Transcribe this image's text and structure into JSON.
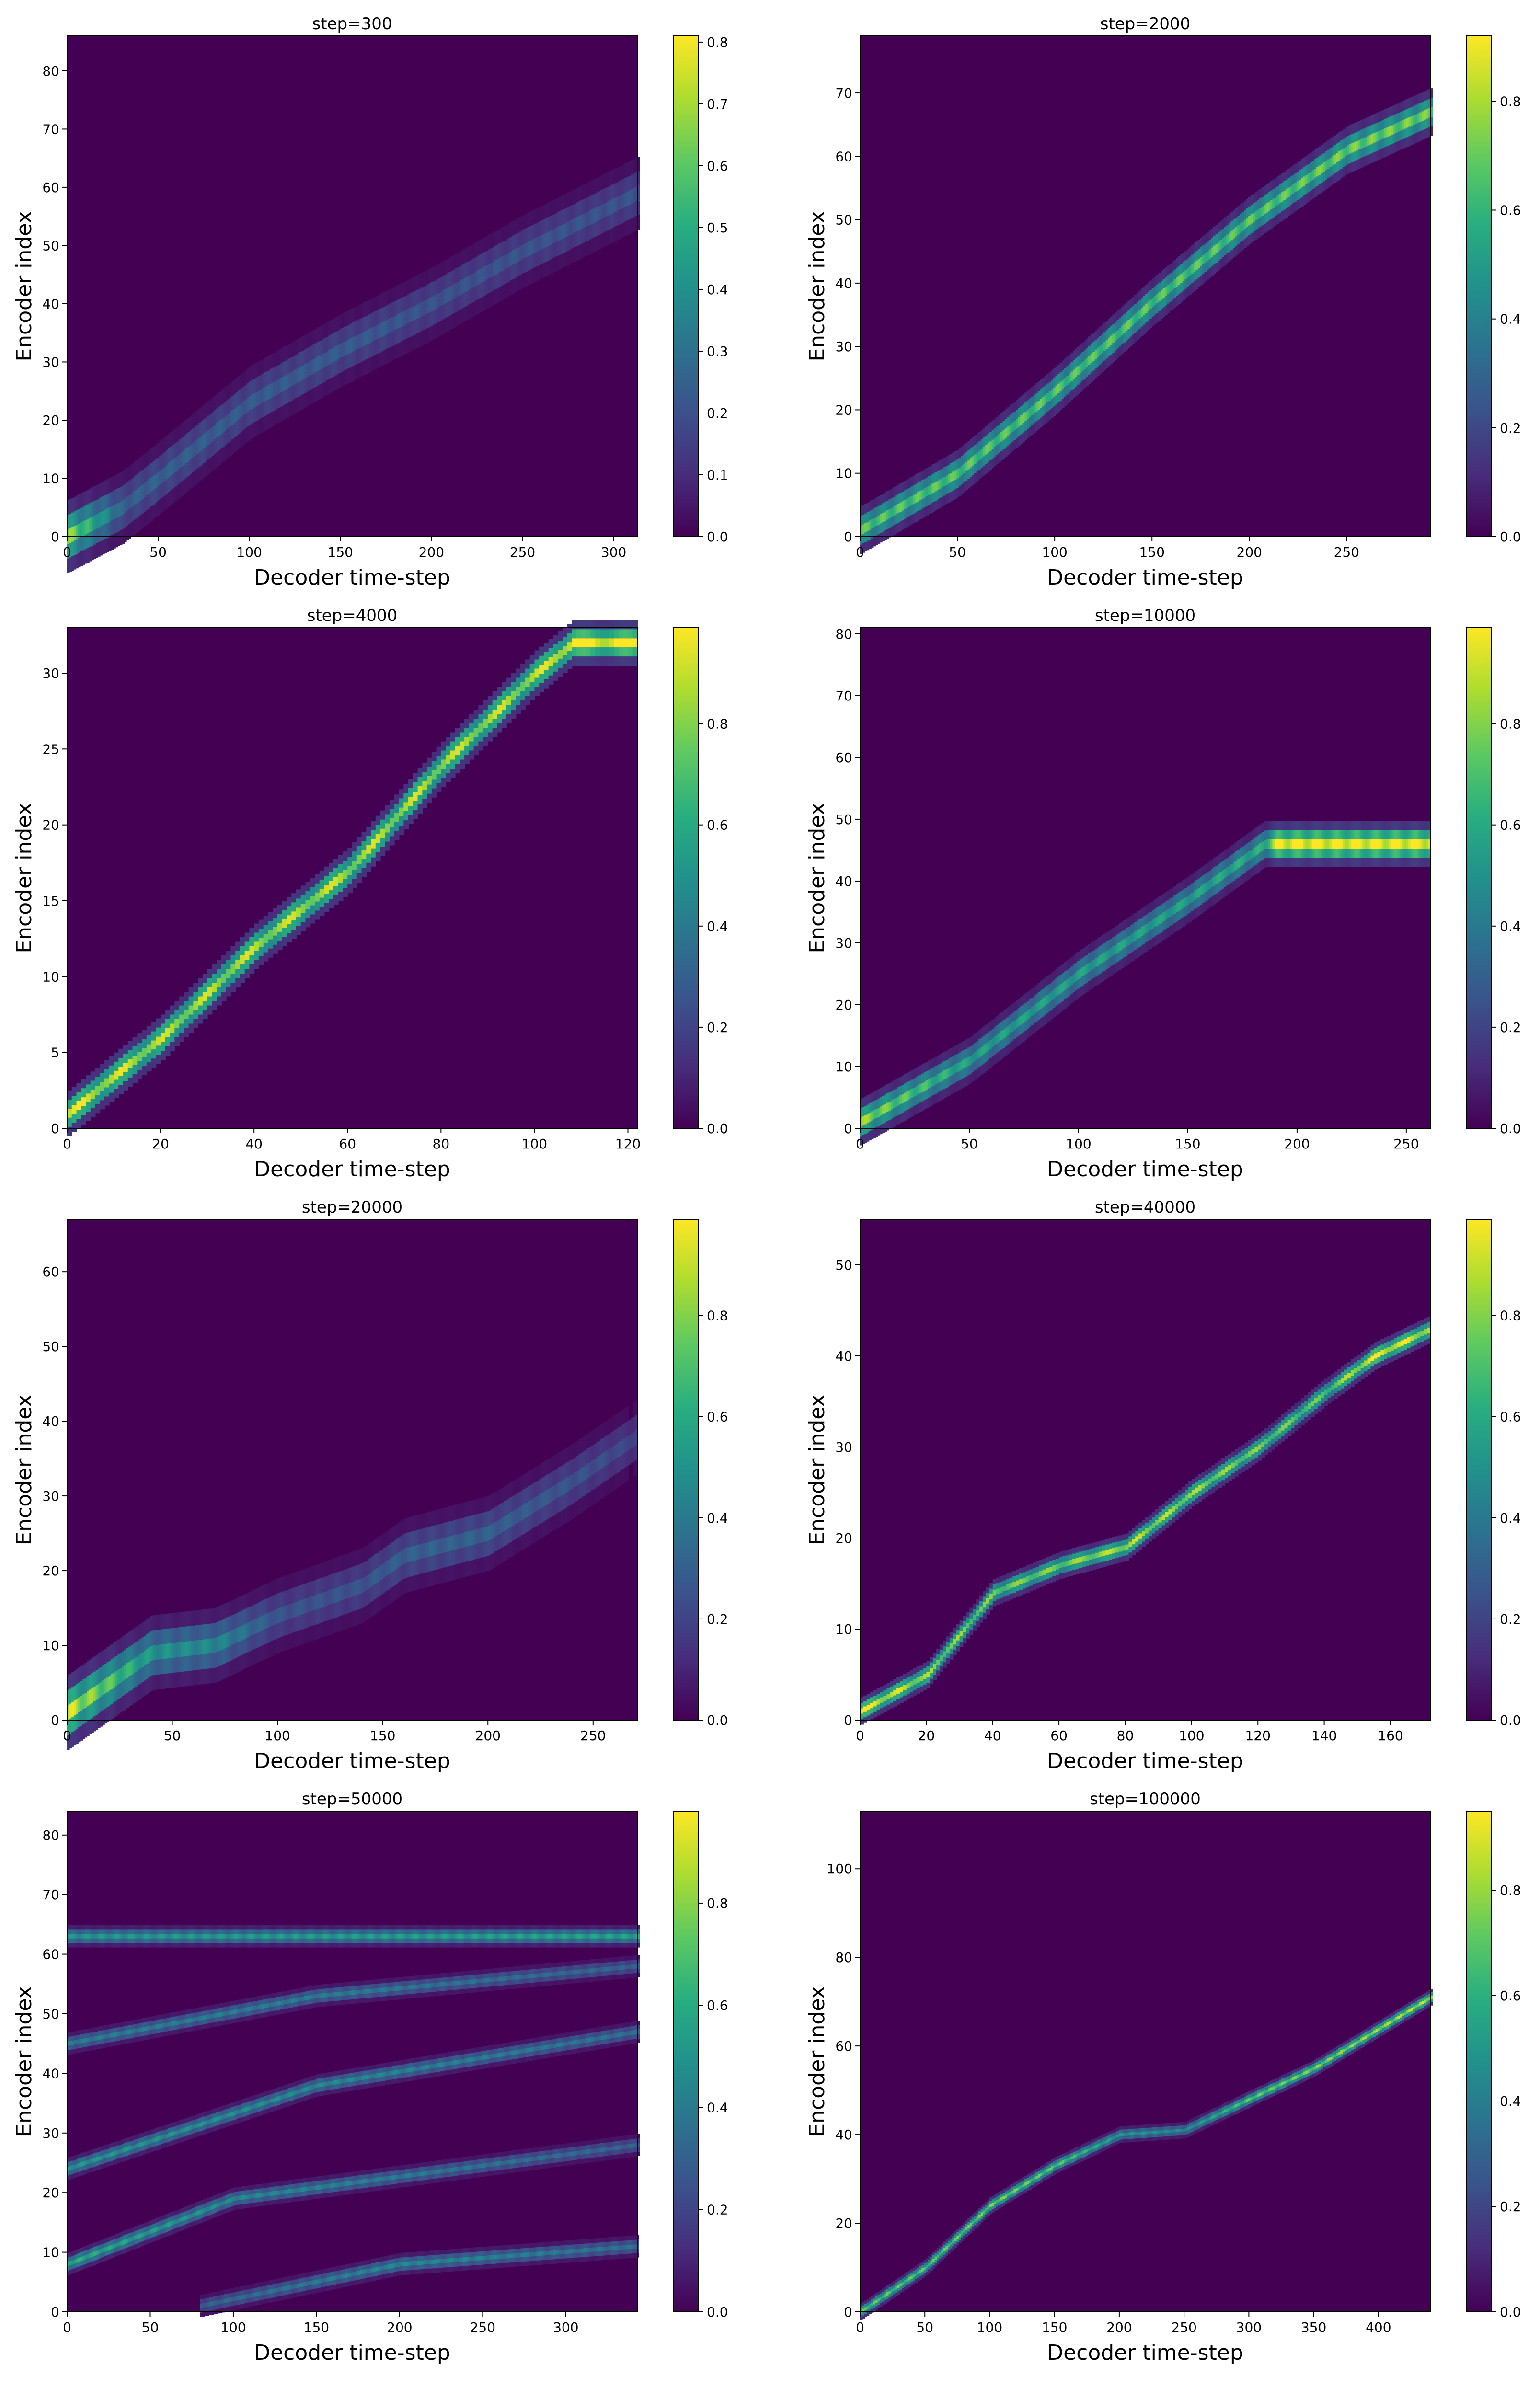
{
  "figure": {
    "rows": 4,
    "cols": 2,
    "colormap": "viridis"
  },
  "chart_data": [
    {
      "type": "heatmap",
      "title": "step=300",
      "xlabel": "Decoder time-step",
      "ylabel": "Encoder index",
      "xlim": [
        0,
        313
      ],
      "ylim": [
        0,
        86
      ],
      "xticks": [
        0,
        50,
        100,
        150,
        200,
        250,
        300
      ],
      "yticks": [
        0,
        10,
        20,
        30,
        40,
        50,
        60,
        70,
        80
      ],
      "colorbar": {
        "min": 0.0,
        "max": 0.81,
        "ticks": [
          0.0,
          0.1,
          0.2,
          0.3,
          0.4,
          0.5,
          0.6,
          0.7,
          0.8
        ],
        "tick_labels": [
          "0.0",
          "0.1",
          "0.2",
          "0.3",
          "0.4",
          "0.5",
          "0.6",
          "0.7",
          "0.8"
        ]
      },
      "alignment": [
        {
          "x": 0,
          "y": 0,
          "v": 0.81
        },
        {
          "x": 30,
          "y": 5,
          "v": 0.3
        },
        {
          "x": 50,
          "y": 10,
          "v": 0.3
        },
        {
          "x": 100,
          "y": 23,
          "v": 0.28
        },
        {
          "x": 150,
          "y": 32,
          "v": 0.28
        },
        {
          "x": 200,
          "y": 40,
          "v": 0.25
        },
        {
          "x": 250,
          "y": 49,
          "v": 0.25
        },
        {
          "x": 313,
          "y": 59,
          "v": 0.25
        }
      ],
      "band_width": 5
    },
    {
      "type": "heatmap",
      "title": "step=2000",
      "xlabel": "Decoder time-step",
      "ylabel": "Encoder index",
      "xlim": [
        0,
        293
      ],
      "ylim": [
        0,
        79
      ],
      "xticks": [
        0,
        50,
        100,
        150,
        200,
        250
      ],
      "yticks": [
        0,
        10,
        20,
        30,
        40,
        50,
        60,
        70
      ],
      "colorbar": {
        "min": 0.0,
        "max": 0.92,
        "ticks": [
          0.0,
          0.2,
          0.4,
          0.6,
          0.8
        ],
        "tick_labels": [
          "0.0",
          "0.2",
          "0.4",
          "0.6",
          "0.8"
        ]
      },
      "alignment": [
        {
          "x": 0,
          "y": 1,
          "v": 0.7
        },
        {
          "x": 50,
          "y": 10,
          "v": 0.7
        },
        {
          "x": 100,
          "y": 23,
          "v": 0.7
        },
        {
          "x": 150,
          "y": 37,
          "v": 0.7
        },
        {
          "x": 200,
          "y": 50,
          "v": 0.7
        },
        {
          "x": 250,
          "y": 61,
          "v": 0.75
        },
        {
          "x": 293,
          "y": 67,
          "v": 0.75
        }
      ],
      "band_width": 3
    },
    {
      "type": "heatmap",
      "title": "step=4000",
      "xlabel": "Decoder time-step",
      "ylabel": "Encoder index",
      "xlim": [
        0,
        122
      ],
      "ylim": [
        0,
        33
      ],
      "xticks": [
        0,
        20,
        40,
        60,
        80,
        100,
        120
      ],
      "yticks": [
        0,
        5,
        10,
        15,
        20,
        25,
        30
      ],
      "colorbar": {
        "min": 0.0,
        "max": 0.99,
        "ticks": [
          0.0,
          0.2,
          0.4,
          0.6,
          0.8
        ],
        "tick_labels": [
          "0.0",
          "0.2",
          "0.4",
          "0.6",
          "0.8"
        ]
      },
      "alignment": [
        {
          "x": 0,
          "y": 1,
          "v": 0.9
        },
        {
          "x": 20,
          "y": 6,
          "v": 0.85
        },
        {
          "x": 40,
          "y": 12,
          "v": 0.85
        },
        {
          "x": 60,
          "y": 17,
          "v": 0.85
        },
        {
          "x": 80,
          "y": 24,
          "v": 0.85
        },
        {
          "x": 100,
          "y": 30,
          "v": 0.85
        },
        {
          "x": 108,
          "y": 32,
          "v": 0.98
        },
        {
          "x": 122,
          "y": 32,
          "v": 0.98
        }
      ],
      "band_width": 1.2
    },
    {
      "type": "heatmap",
      "title": "step=10000",
      "xlabel": "Decoder time-step",
      "ylabel": "Encoder index",
      "xlim": [
        0,
        261
      ],
      "ylim": [
        0,
        81
      ],
      "xticks": [
        0,
        50,
        100,
        150,
        200,
        250
      ],
      "yticks": [
        0,
        10,
        20,
        30,
        40,
        50,
        60,
        70,
        80
      ],
      "colorbar": {
        "min": 0.0,
        "max": 0.99,
        "ticks": [
          0.0,
          0.2,
          0.4,
          0.6,
          0.8
        ],
        "tick_labels": [
          "0.0",
          "0.2",
          "0.4",
          "0.6",
          "0.8"
        ]
      },
      "alignment": [
        {
          "x": 0,
          "y": 1,
          "v": 0.8
        },
        {
          "x": 50,
          "y": 11,
          "v": 0.55
        },
        {
          "x": 100,
          "y": 25,
          "v": 0.55
        },
        {
          "x": 150,
          "y": 37,
          "v": 0.55
        },
        {
          "x": 185,
          "y": 46,
          "v": 0.6
        },
        {
          "x": 190,
          "y": 46,
          "v": 0.98
        },
        {
          "x": 261,
          "y": 46,
          "v": 0.98
        }
      ],
      "band_width": 3
    },
    {
      "type": "heatmap",
      "title": "step=20000",
      "xlabel": "Decoder time-step",
      "ylabel": "Encoder index",
      "xlim": [
        0,
        271
      ],
      "ylim": [
        0,
        67
      ],
      "xticks": [
        0,
        50,
        100,
        150,
        200,
        250
      ],
      "yticks": [
        0,
        10,
        20,
        30,
        40,
        50,
        60
      ],
      "colorbar": {
        "min": 0.0,
        "max": 0.99,
        "ticks": [
          0.0,
          0.2,
          0.4,
          0.6,
          0.8
        ],
        "tick_labels": [
          "0.0",
          "0.2",
          "0.4",
          "0.6",
          "0.8"
        ]
      },
      "alignment": [
        {
          "x": 0,
          "y": 1,
          "v": 0.9
        },
        {
          "x": 40,
          "y": 9,
          "v": 0.5
        },
        {
          "x": 70,
          "y": 10,
          "v": 0.45
        },
        {
          "x": 100,
          "y": 14,
          "v": 0.25
        },
        {
          "x": 140,
          "y": 18,
          "v": 0.25
        },
        {
          "x": 160,
          "y": 22,
          "v": 0.3
        },
        {
          "x": 200,
          "y": 25,
          "v": 0.3
        },
        {
          "x": 240,
          "y": 32,
          "v": 0.25
        },
        {
          "x": 271,
          "y": 38,
          "v": 0.2
        }
      ],
      "band_width": 4
    },
    {
      "type": "heatmap",
      "title": "step=40000",
      "xlabel": "Decoder time-step",
      "ylabel": "Encoder index",
      "xlim": [
        0,
        172
      ],
      "ylim": [
        0,
        55
      ],
      "xticks": [
        0,
        20,
        40,
        60,
        80,
        100,
        120,
        140,
        160
      ],
      "yticks": [
        0,
        10,
        20,
        30,
        40,
        50
      ],
      "colorbar": {
        "min": 0.0,
        "max": 0.99,
        "ticks": [
          0.0,
          0.2,
          0.4,
          0.6,
          0.8
        ],
        "tick_labels": [
          "0.0",
          "0.2",
          "0.4",
          "0.6",
          "0.8"
        ]
      },
      "alignment": [
        {
          "x": 0,
          "y": 1,
          "v": 0.95
        },
        {
          "x": 20,
          "y": 5,
          "v": 0.8
        },
        {
          "x": 40,
          "y": 14,
          "v": 0.75
        },
        {
          "x": 60,
          "y": 17,
          "v": 0.75
        },
        {
          "x": 80,
          "y": 19,
          "v": 0.85
        },
        {
          "x": 100,
          "y": 25,
          "v": 0.8
        },
        {
          "x": 120,
          "y": 30,
          "v": 0.75
        },
        {
          "x": 140,
          "y": 36,
          "v": 0.7
        },
        {
          "x": 155,
          "y": 40,
          "v": 0.95
        },
        {
          "x": 172,
          "y": 43,
          "v": 0.85
        }
      ],
      "band_width": 1.2
    },
    {
      "type": "heatmap",
      "title": "step=50000",
      "xlabel": "Decoder time-step",
      "ylabel": "Encoder index",
      "xlim": [
        0,
        343
      ],
      "ylim": [
        0,
        84
      ],
      "xticks": [
        0,
        50,
        100,
        150,
        200,
        250,
        300
      ],
      "yticks": [
        0,
        10,
        20,
        30,
        40,
        50,
        60,
        70,
        80
      ],
      "colorbar": {
        "min": 0.0,
        "max": 0.98,
        "ticks": [
          0.0,
          0.2,
          0.4,
          0.6,
          0.8
        ],
        "tick_labels": [
          "0.0",
          "0.2",
          "0.4",
          "0.6",
          "0.8"
        ]
      },
      "traces": [
        [
          {
            "x": 0,
            "y": 63,
            "v": 0.5
          },
          {
            "x": 343,
            "y": 63,
            "v": 0.55
          }
        ],
        [
          {
            "x": 0,
            "y": 45,
            "v": 0.4
          },
          {
            "x": 150,
            "y": 53,
            "v": 0.4
          },
          {
            "x": 343,
            "y": 58,
            "v": 0.3
          }
        ],
        [
          {
            "x": 0,
            "y": 24,
            "v": 0.5
          },
          {
            "x": 150,
            "y": 38,
            "v": 0.45
          },
          {
            "x": 343,
            "y": 47,
            "v": 0.35
          }
        ],
        [
          {
            "x": 0,
            "y": 8,
            "v": 0.6
          },
          {
            "x": 100,
            "y": 19,
            "v": 0.45
          },
          {
            "x": 343,
            "y": 28,
            "v": 0.3
          }
        ],
        [
          {
            "x": 80,
            "y": 1,
            "v": 0.3
          },
          {
            "x": 200,
            "y": 8,
            "v": 0.45
          },
          {
            "x": 343,
            "y": 11,
            "v": 0.35
          }
        ]
      ],
      "band_width": 1.5
    },
    {
      "type": "heatmap",
      "title": "step=100000",
      "xlabel": "Decoder time-step",
      "ylabel": "Encoder index",
      "xlim": [
        0,
        440
      ],
      "ylim": [
        0,
        113
      ],
      "xticks": [
        0,
        50,
        100,
        150,
        200,
        250,
        300,
        350,
        400
      ],
      "yticks": [
        0,
        20,
        40,
        60,
        80,
        100
      ],
      "colorbar": {
        "min": 0.0,
        "max": 0.95,
        "ticks": [
          0.0,
          0.2,
          0.4,
          0.6,
          0.8
        ],
        "tick_labels": [
          "0.0",
          "0.2",
          "0.4",
          "0.6",
          "0.8"
        ]
      },
      "alignment": [
        {
          "x": 0,
          "y": 0,
          "v": 0.7
        },
        {
          "x": 50,
          "y": 10,
          "v": 0.7
        },
        {
          "x": 100,
          "y": 24,
          "v": 0.75
        },
        {
          "x": 150,
          "y": 33,
          "v": 0.7
        },
        {
          "x": 200,
          "y": 40,
          "v": 0.5
        },
        {
          "x": 250,
          "y": 41,
          "v": 0.45
        },
        {
          "x": 300,
          "y": 48,
          "v": 0.7
        },
        {
          "x": 350,
          "y": 55,
          "v": 0.75
        },
        {
          "x": 440,
          "y": 71,
          "v": 0.85
        }
      ],
      "band_width": 1.5
    }
  ]
}
